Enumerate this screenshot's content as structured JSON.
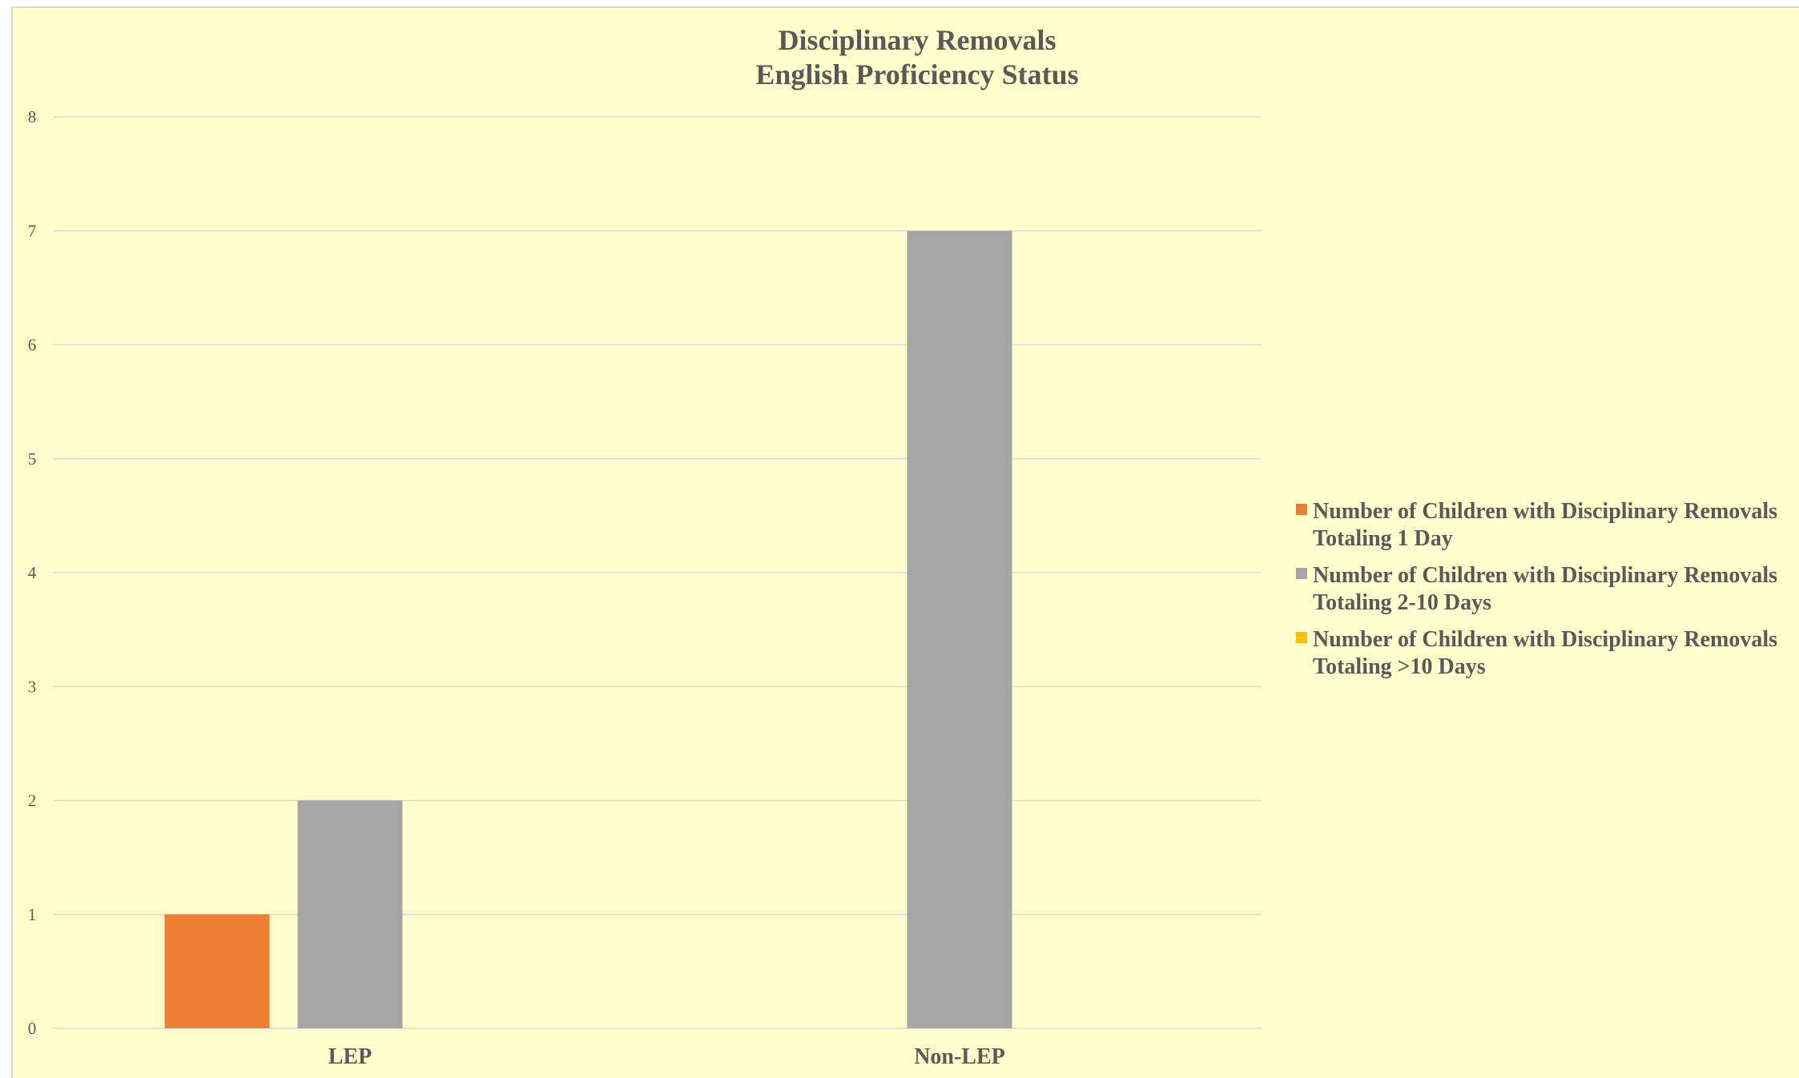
{
  "chart_data": {
    "type": "bar",
    "title": [
      "Disciplinary Removals",
      "English Proficiency Status"
    ],
    "xlabel": "",
    "ylabel": "",
    "categories": [
      "LEP",
      "Non-LEP"
    ],
    "ylim": [
      0,
      8
    ],
    "yticks": [
      "0",
      "1",
      "2",
      "3",
      "4",
      "5",
      "6",
      "7",
      "8"
    ],
    "grid": true,
    "legend_position": "right",
    "series": [
      {
        "name": "Number of Children with Disciplinary Removals Totaling 1 Day",
        "name_lines": [
          "Number of Children with Disciplinary Removals",
          "Totaling 1 Day"
        ],
        "color": "#ed7d31",
        "values": [
          1,
          0
        ]
      },
      {
        "name": "Number of Children with Disciplinary Removals Totaling 2-10 Days",
        "name_lines": [
          "Number of Children with Disciplinary Removals",
          "Totaling 2-10 Days"
        ],
        "color": "#a5a5a5",
        "values": [
          2,
          7
        ]
      },
      {
        "name": "Number of Children with Disciplinary Removals Totaling >10 Days",
        "name_lines": [
          "Number of Children with Disciplinary Removals",
          "Totaling >10 Days"
        ],
        "color": "#ffc000",
        "values": [
          0,
          0
        ]
      }
    ],
    "colors": {
      "background": "#ffffcc",
      "gridline": "#d9d9d9",
      "text": "#595959"
    }
  }
}
